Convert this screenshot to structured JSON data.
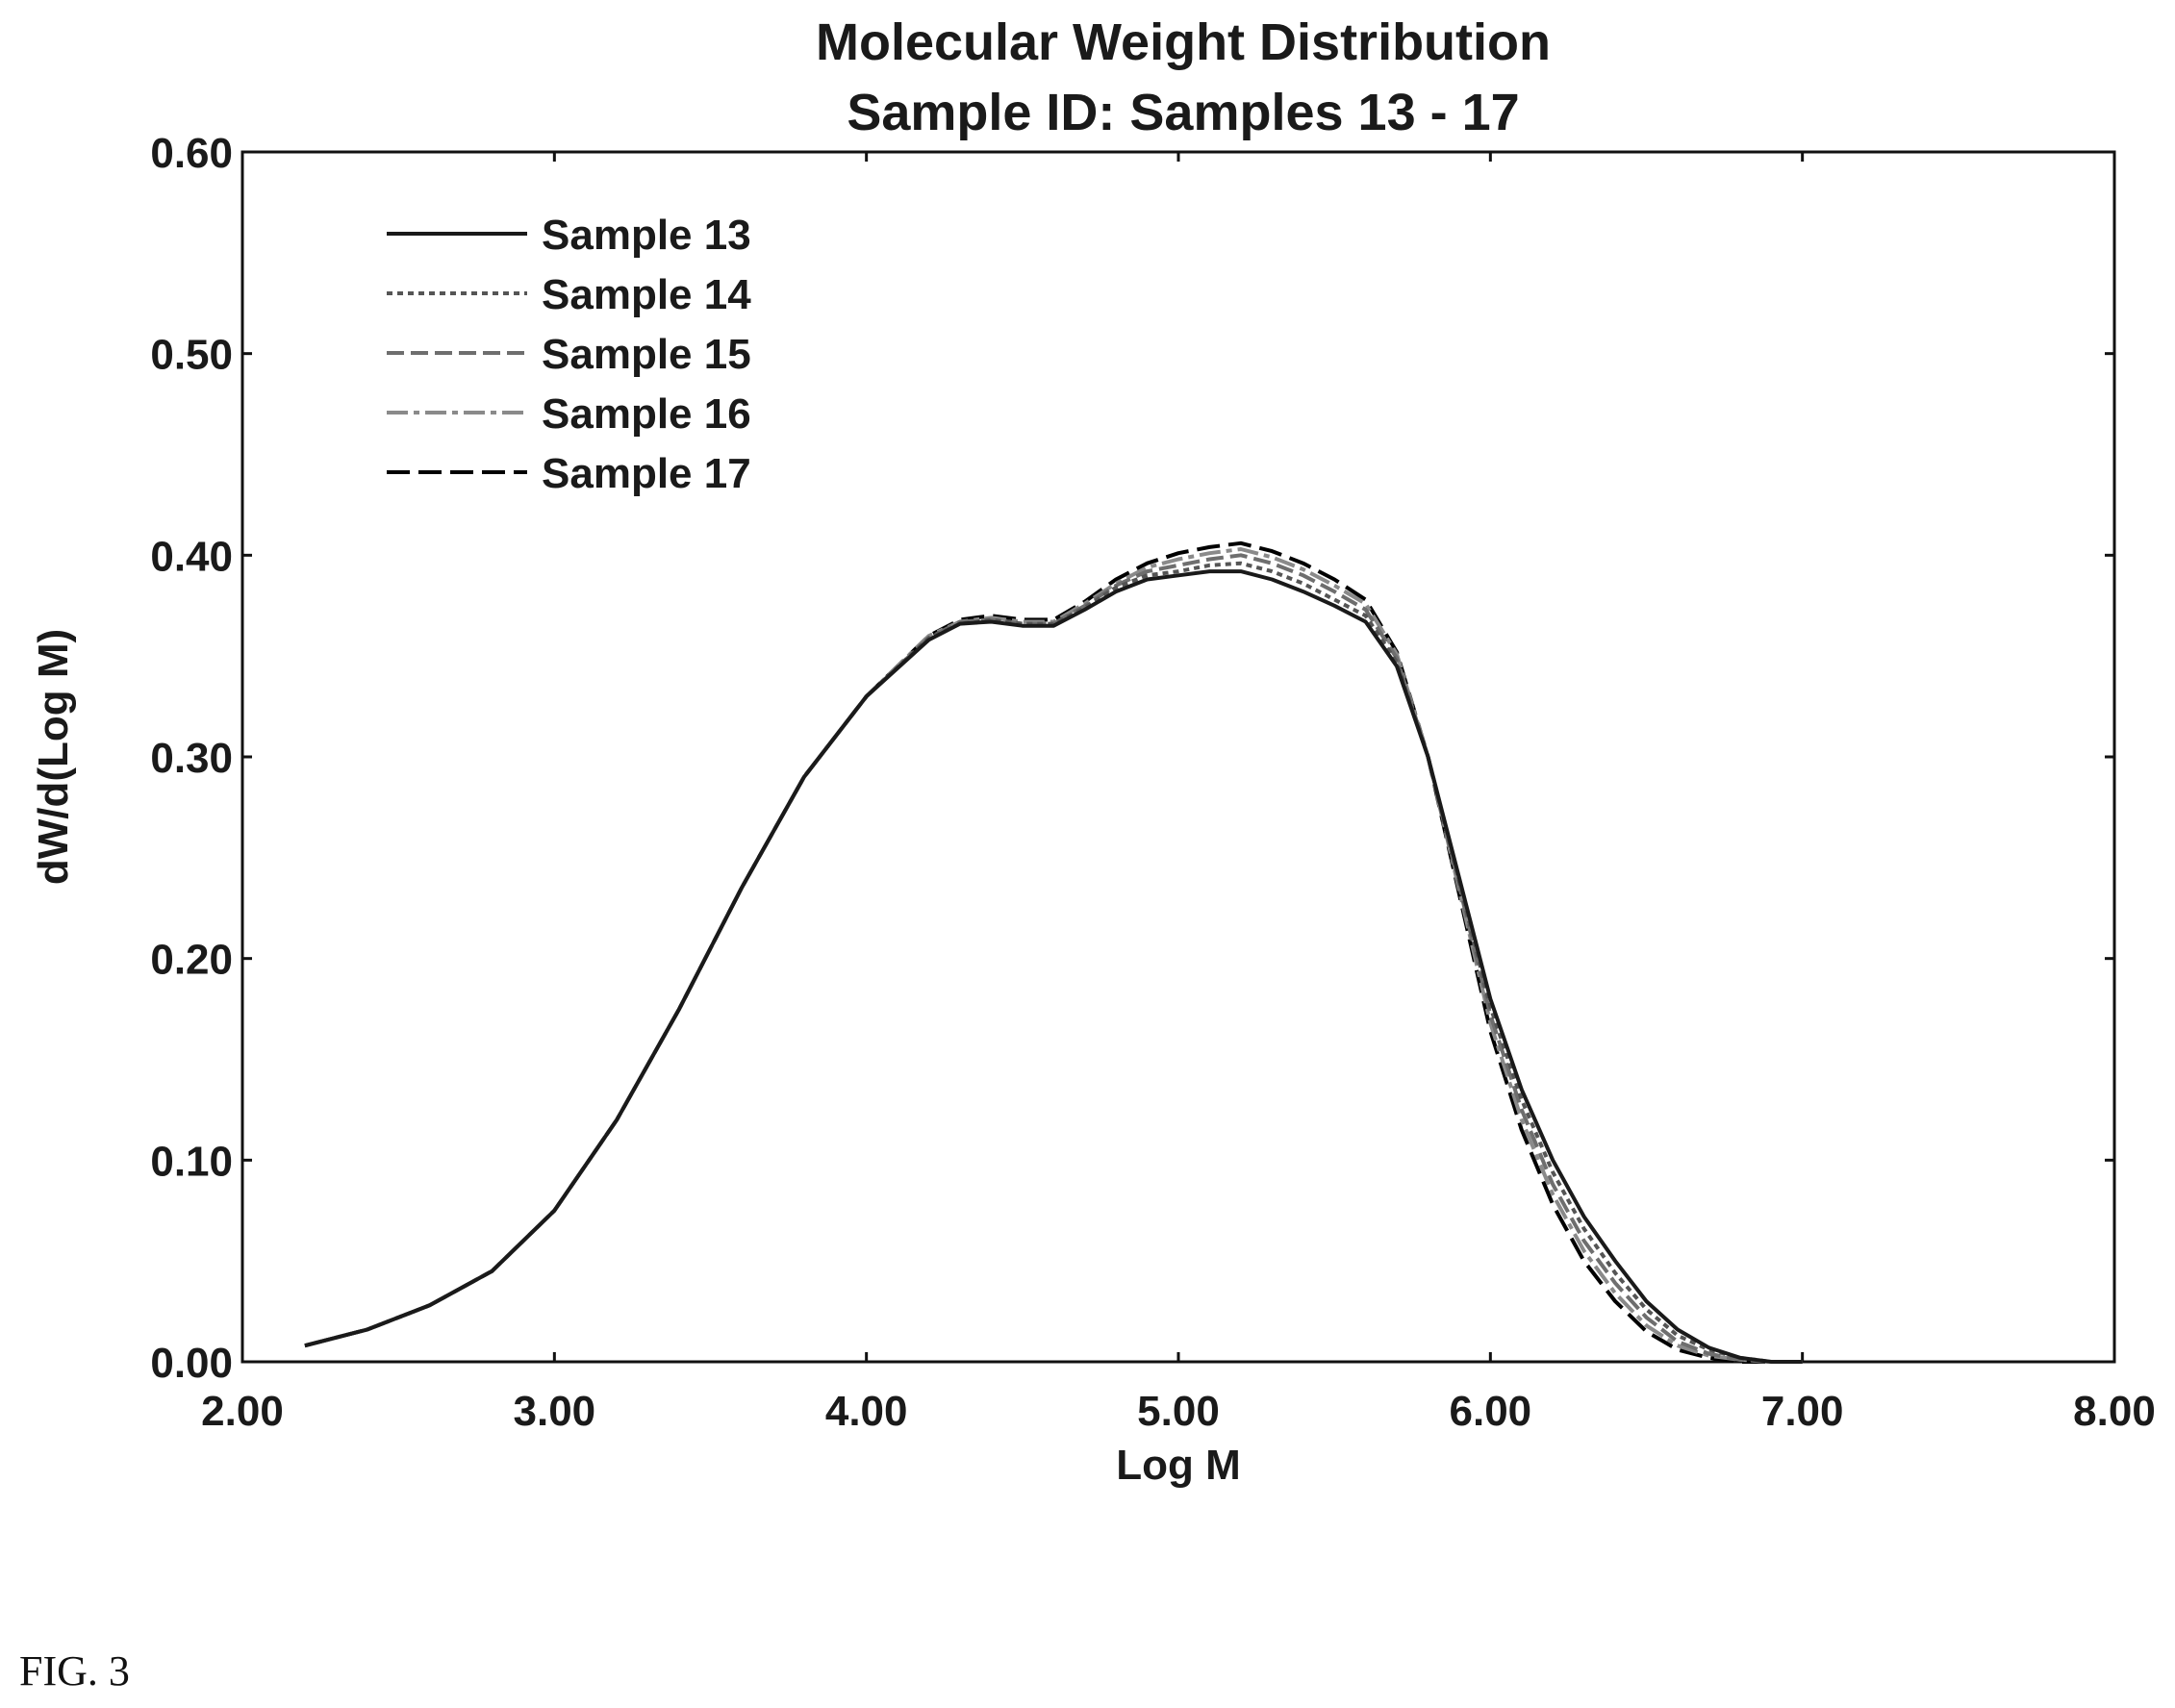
{
  "figure_label": "FIG. 3",
  "chart_data": {
    "type": "line",
    "title": "Molecular Weight Distribution",
    "subtitle": "Sample ID: Samples 13 - 17",
    "xlabel": "Log M",
    "ylabel": "dW/d(Log M)",
    "xlim": [
      2.0,
      8.0
    ],
    "ylim": [
      0.0,
      0.6
    ],
    "x_ticks": [
      "2.00",
      "3.00",
      "4.00",
      "5.00",
      "6.00",
      "7.00",
      "8.00"
    ],
    "y_ticks": [
      "0.00",
      "0.10",
      "0.20",
      "0.30",
      "0.40",
      "0.50",
      "0.60"
    ],
    "grid": false,
    "legend_position": "top-left",
    "x": [
      2.2,
      2.4,
      2.6,
      2.8,
      3.0,
      3.2,
      3.4,
      3.6,
      3.8,
      4.0,
      4.2,
      4.3,
      4.4,
      4.5,
      4.6,
      4.7,
      4.8,
      4.9,
      5.0,
      5.1,
      5.2,
      5.3,
      5.4,
      5.5,
      5.6,
      5.7,
      5.8,
      5.9,
      6.0,
      6.1,
      6.2,
      6.3,
      6.4,
      6.5,
      6.6,
      6.7,
      6.8,
      6.9,
      7.0
    ],
    "series": [
      {
        "name": "Sample 13",
        "color": "#1a1a1a",
        "dash": "",
        "values": [
          0.008,
          0.016,
          0.028,
          0.045,
          0.075,
          0.12,
          0.175,
          0.235,
          0.29,
          0.33,
          0.358,
          0.366,
          0.367,
          0.365,
          0.365,
          0.373,
          0.382,
          0.388,
          0.39,
          0.392,
          0.392,
          0.388,
          0.382,
          0.375,
          0.367,
          0.345,
          0.3,
          0.24,
          0.18,
          0.135,
          0.1,
          0.072,
          0.05,
          0.03,
          0.016,
          0.007,
          0.002,
          0.0,
          0.0
        ]
      },
      {
        "name": "Sample 14",
        "color": "#555555",
        "dash": "6,5",
        "values": [
          0.008,
          0.016,
          0.028,
          0.045,
          0.075,
          0.12,
          0.175,
          0.235,
          0.29,
          0.33,
          0.359,
          0.366,
          0.368,
          0.366,
          0.366,
          0.374,
          0.384,
          0.39,
          0.392,
          0.395,
          0.396,
          0.392,
          0.386,
          0.378,
          0.37,
          0.347,
          0.3,
          0.238,
          0.176,
          0.13,
          0.094,
          0.066,
          0.044,
          0.026,
          0.013,
          0.006,
          0.002,
          0.0,
          0.0
        ]
      },
      {
        "name": "Sample 15",
        "color": "#6e6e6e",
        "dash": "18,7",
        "values": [
          0.008,
          0.016,
          0.028,
          0.045,
          0.075,
          0.12,
          0.175,
          0.235,
          0.29,
          0.33,
          0.359,
          0.367,
          0.368,
          0.366,
          0.366,
          0.375,
          0.385,
          0.392,
          0.395,
          0.398,
          0.4,
          0.396,
          0.39,
          0.382,
          0.373,
          0.349,
          0.3,
          0.236,
          0.172,
          0.125,
          0.088,
          0.06,
          0.039,
          0.022,
          0.01,
          0.004,
          0.001,
          0.0,
          0.0
        ]
      },
      {
        "name": "Sample 16",
        "color": "#8a8a8a",
        "dash": "22,6,6,6",
        "values": [
          0.008,
          0.016,
          0.028,
          0.045,
          0.075,
          0.12,
          0.175,
          0.235,
          0.29,
          0.33,
          0.36,
          0.367,
          0.369,
          0.367,
          0.367,
          0.376,
          0.386,
          0.394,
          0.398,
          0.401,
          0.403,
          0.399,
          0.393,
          0.385,
          0.376,
          0.351,
          0.3,
          0.234,
          0.168,
          0.12,
          0.083,
          0.055,
          0.034,
          0.018,
          0.008,
          0.003,
          0.001,
          0.0,
          0.0
        ]
      },
      {
        "name": "Sample 17",
        "color": "#000000",
        "dash": "24,9",
        "values": [
          0.008,
          0.016,
          0.028,
          0.045,
          0.075,
          0.12,
          0.175,
          0.235,
          0.29,
          0.33,
          0.36,
          0.368,
          0.37,
          0.368,
          0.368,
          0.377,
          0.388,
          0.396,
          0.401,
          0.404,
          0.406,
          0.402,
          0.396,
          0.388,
          0.378,
          0.352,
          0.3,
          0.232,
          0.164,
          0.115,
          0.078,
          0.05,
          0.03,
          0.015,
          0.006,
          0.002,
          0.0,
          0.0,
          0.0
        ]
      }
    ]
  }
}
